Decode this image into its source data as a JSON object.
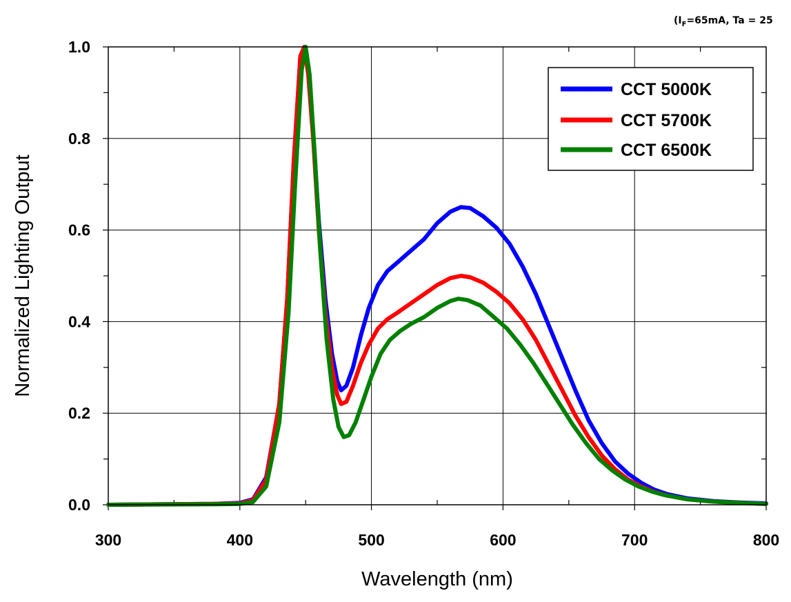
{
  "chart_data": {
    "type": "line",
    "condition": {
      "prefix": "(I",
      "subscript": "F",
      "suffix": "=65mA, Ta = 25"
    },
    "xlabel": "Wavelength (nm)",
    "ylabel": "Normalized Lighting Output",
    "xlim": [
      300,
      800
    ],
    "ylim": [
      0,
      1.0
    ],
    "x_ticks": [
      "300",
      "400",
      "500",
      "600",
      "700",
      "800"
    ],
    "y_ticks": [
      "0.0",
      "0.2",
      "0.4",
      "0.6",
      "0.8",
      "1.0"
    ],
    "grid": true,
    "legend_position": "top-right",
    "series": [
      {
        "name": "CCT 5000K",
        "color": "#0000ff",
        "points": [
          [
            300,
            0
          ],
          [
            380,
            0.002
          ],
          [
            400,
            0.004
          ],
          [
            410,
            0.012
          ],
          [
            420,
            0.06
          ],
          [
            430,
            0.22
          ],
          [
            436,
            0.45
          ],
          [
            441,
            0.75
          ],
          [
            446,
            0.98
          ],
          [
            449,
            1.0
          ],
          [
            452,
            0.95
          ],
          [
            456,
            0.8
          ],
          [
            460,
            0.62
          ],
          [
            465,
            0.45
          ],
          [
            470,
            0.33
          ],
          [
            474,
            0.27
          ],
          [
            477,
            0.25
          ],
          [
            481,
            0.26
          ],
          [
            486,
            0.3
          ],
          [
            492,
            0.37
          ],
          [
            498,
            0.43
          ],
          [
            505,
            0.48
          ],
          [
            512,
            0.51
          ],
          [
            520,
            0.53
          ],
          [
            530,
            0.555
          ],
          [
            540,
            0.58
          ],
          [
            550,
            0.615
          ],
          [
            560,
            0.64
          ],
          [
            568,
            0.65
          ],
          [
            575,
            0.648
          ],
          [
            585,
            0.63
          ],
          [
            595,
            0.605
          ],
          [
            605,
            0.57
          ],
          [
            615,
            0.52
          ],
          [
            625,
            0.46
          ],
          [
            635,
            0.39
          ],
          [
            645,
            0.32
          ],
          [
            655,
            0.25
          ],
          [
            665,
            0.185
          ],
          [
            675,
            0.135
          ],
          [
            685,
            0.095
          ],
          [
            695,
            0.068
          ],
          [
            705,
            0.048
          ],
          [
            715,
            0.033
          ],
          [
            725,
            0.023
          ],
          [
            740,
            0.014
          ],
          [
            760,
            0.008
          ],
          [
            780,
            0.005
          ],
          [
            800,
            0.003
          ]
        ]
      },
      {
        "name": "CCT 5700K",
        "color": "#ff0000",
        "points": [
          [
            300,
            0
          ],
          [
            380,
            0.002
          ],
          [
            400,
            0.003
          ],
          [
            410,
            0.01
          ],
          [
            420,
            0.055
          ],
          [
            430,
            0.22
          ],
          [
            436,
            0.45
          ],
          [
            441,
            0.75
          ],
          [
            446,
            0.98
          ],
          [
            449,
            1.0
          ],
          [
            452,
            0.94
          ],
          [
            456,
            0.79
          ],
          [
            460,
            0.6
          ],
          [
            465,
            0.42
          ],
          [
            470,
            0.3
          ],
          [
            474,
            0.24
          ],
          [
            477,
            0.22
          ],
          [
            481,
            0.225
          ],
          [
            486,
            0.26
          ],
          [
            492,
            0.31
          ],
          [
            498,
            0.35
          ],
          [
            505,
            0.385
          ],
          [
            512,
            0.405
          ],
          [
            520,
            0.42
          ],
          [
            530,
            0.44
          ],
          [
            540,
            0.46
          ],
          [
            550,
            0.48
          ],
          [
            560,
            0.495
          ],
          [
            568,
            0.5
          ],
          [
            575,
            0.497
          ],
          [
            585,
            0.485
          ],
          [
            595,
            0.465
          ],
          [
            605,
            0.44
          ],
          [
            615,
            0.405
          ],
          [
            625,
            0.36
          ],
          [
            635,
            0.305
          ],
          [
            645,
            0.25
          ],
          [
            655,
            0.195
          ],
          [
            665,
            0.148
          ],
          [
            675,
            0.108
          ],
          [
            685,
            0.078
          ],
          [
            695,
            0.055
          ],
          [
            705,
            0.04
          ],
          [
            715,
            0.028
          ],
          [
            725,
            0.02
          ],
          [
            740,
            0.012
          ],
          [
            760,
            0.007
          ],
          [
            780,
            0.004
          ],
          [
            800,
            0.002
          ]
        ]
      },
      {
        "name": "CCT 6500K",
        "color": "#008000",
        "points": [
          [
            300,
            0
          ],
          [
            380,
            0.001
          ],
          [
            400,
            0.002
          ],
          [
            410,
            0.006
          ],
          [
            420,
            0.04
          ],
          [
            430,
            0.18
          ],
          [
            437,
            0.42
          ],
          [
            442,
            0.7
          ],
          [
            447,
            0.95
          ],
          [
            450,
            1.0
          ],
          [
            453,
            0.94
          ],
          [
            457,
            0.76
          ],
          [
            461,
            0.56
          ],
          [
            466,
            0.36
          ],
          [
            471,
            0.23
          ],
          [
            475,
            0.17
          ],
          [
            479,
            0.148
          ],
          [
            483,
            0.152
          ],
          [
            488,
            0.18
          ],
          [
            494,
            0.23
          ],
          [
            500,
            0.28
          ],
          [
            507,
            0.33
          ],
          [
            514,
            0.36
          ],
          [
            522,
            0.38
          ],
          [
            530,
            0.395
          ],
          [
            540,
            0.41
          ],
          [
            550,
            0.43
          ],
          [
            560,
            0.445
          ],
          [
            566,
            0.45
          ],
          [
            573,
            0.447
          ],
          [
            583,
            0.435
          ],
          [
            593,
            0.41
          ],
          [
            603,
            0.385
          ],
          [
            613,
            0.35
          ],
          [
            623,
            0.31
          ],
          [
            633,
            0.265
          ],
          [
            643,
            0.22
          ],
          [
            653,
            0.175
          ],
          [
            663,
            0.135
          ],
          [
            673,
            0.1
          ],
          [
            683,
            0.075
          ],
          [
            693,
            0.055
          ],
          [
            703,
            0.04
          ],
          [
            713,
            0.029
          ],
          [
            723,
            0.021
          ],
          [
            740,
            0.012
          ],
          [
            760,
            0.007
          ],
          [
            780,
            0.004
          ],
          [
            800,
            0.002
          ]
        ]
      }
    ]
  }
}
